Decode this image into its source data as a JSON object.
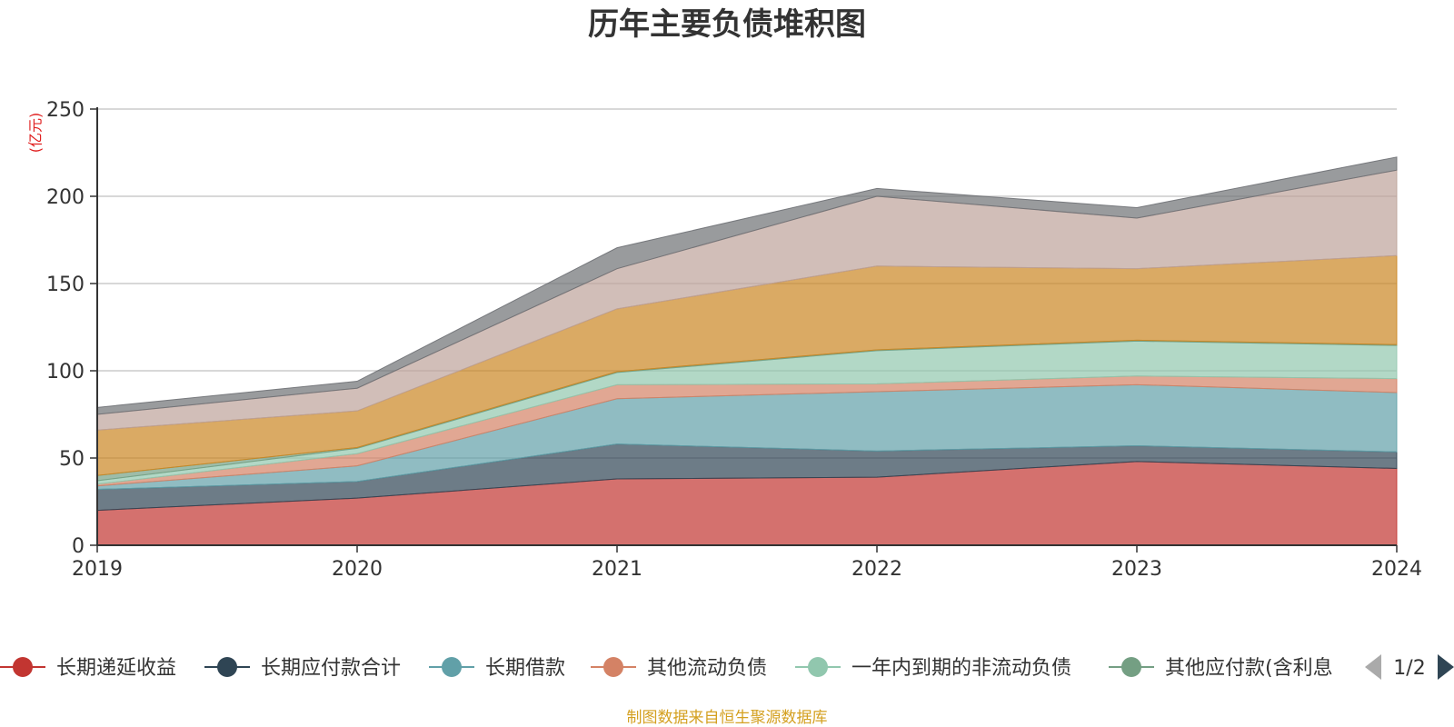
{
  "chart_data": {
    "type": "area",
    "stacked": true,
    "title": "历年主要负债堆积图",
    "unit_label": "(亿元)",
    "x": [
      "2019",
      "2020",
      "2021",
      "2022",
      "2023",
      "2024"
    ],
    "ylim": [
      0,
      250
    ],
    "yticks": [
      0,
      50,
      100,
      150,
      200,
      250
    ],
    "grid": true,
    "series": [
      {
        "name": "长期递延收益",
        "color": "#c23531",
        "values": [
          20,
          27,
          38,
          39,
          48,
          44
        ]
      },
      {
        "name": "长期应付款合计",
        "color": "#2f4554",
        "values": [
          12,
          9.5,
          20,
          15,
          9,
          9.5
        ]
      },
      {
        "name": "长期借款",
        "color": "#61a0a8",
        "values": [
          2,
          9,
          26,
          34,
          35,
          34
        ]
      },
      {
        "name": "其他流动负债",
        "color": "#d48265",
        "values": [
          1,
          7,
          8,
          4.5,
          5,
          8
        ]
      },
      {
        "name": "一年内到期的非流动负债",
        "color": "#91c7ae",
        "values": [
          2,
          3,
          7,
          19,
          20,
          19
        ]
      },
      {
        "name": "其他应付款(含利息和股利)",
        "color": "#749f83",
        "values": [
          3,
          0.5,
          0.5,
          0.5,
          0.5,
          0.5
        ]
      },
      {
        "name": "",
        "color": "#ca8622",
        "values": [
          26,
          21,
          36,
          48,
          41,
          51
        ]
      },
      {
        "name": "",
        "color": "#bda29a",
        "values": [
          9,
          13,
          23,
          40,
          29,
          49
        ]
      },
      {
        "name": "",
        "color": "#6e7074",
        "values": [
          4,
          4,
          12,
          4.5,
          6,
          7.5
        ]
      }
    ],
    "legend": {
      "position": "bottom",
      "visible_items": [
        "长期递延收益",
        "长期应付款合计",
        "长期借款",
        "其他流动负债",
        "一年内到期的非流动负债",
        "其他应付款(含利息"
      ],
      "page": "1/2"
    },
    "source_note": "制图数据来自恒生聚源数据库"
  }
}
